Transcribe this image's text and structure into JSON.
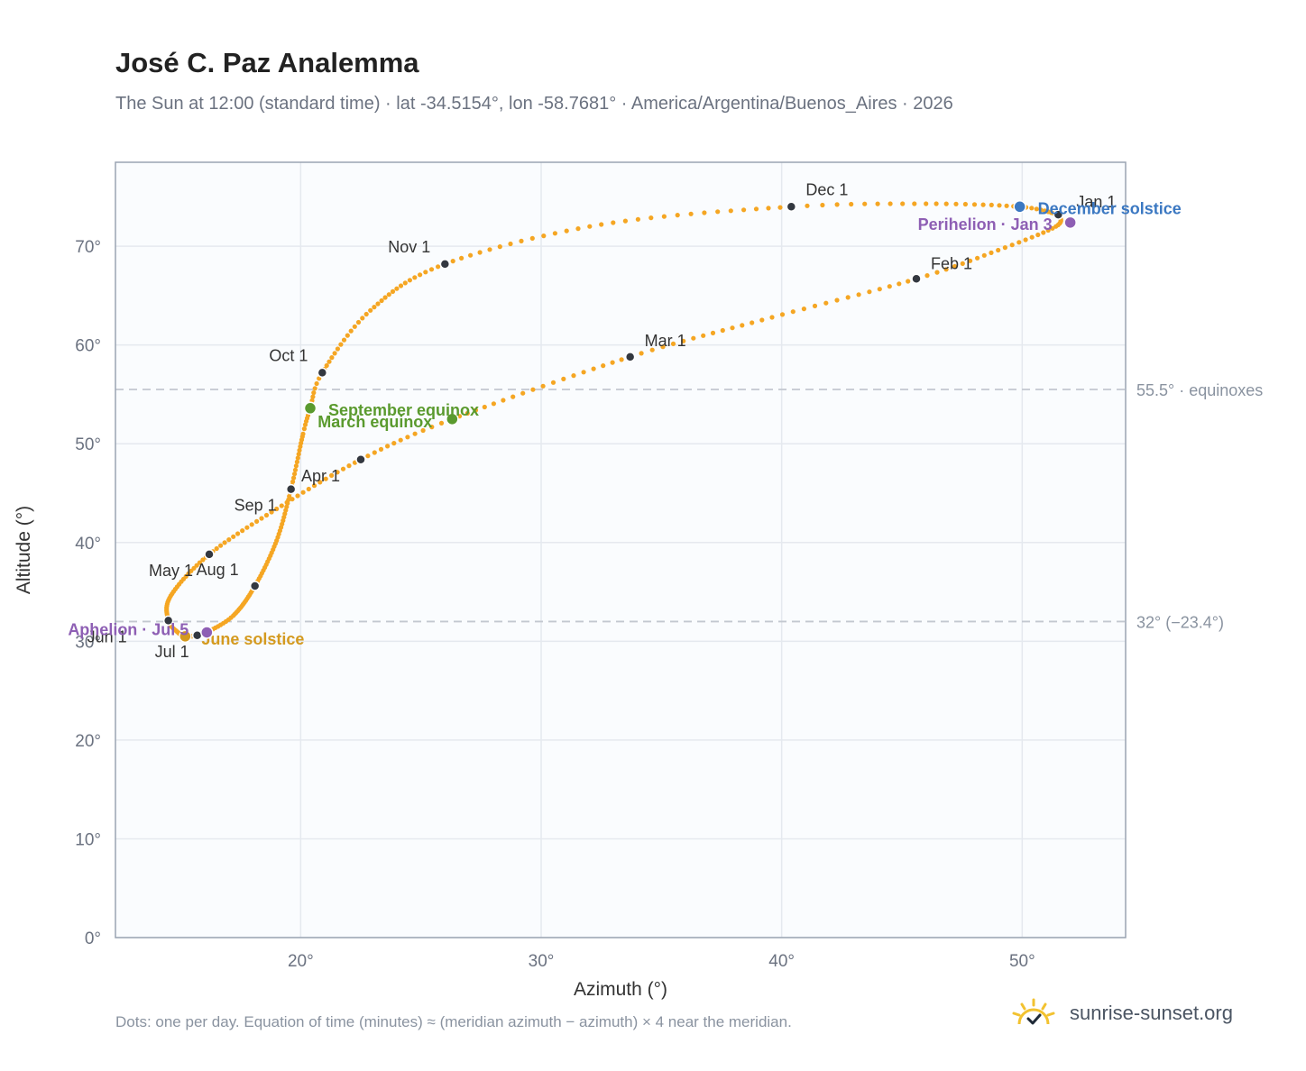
{
  "title": "José C. Paz Analemma",
  "subtitle": "The Sun at 12:00 (standard time) · lat -34.5154°, lon -58.7681° · America/Argentina/Buenos_Aires · 2026",
  "footnote": "Dots: one per day. Equation of time (minutes) ≈ (meridian azimuth − azimuth) × 4 near the meridian.",
  "brand": {
    "name": "sunrise-sunset.org",
    "icon": "sun-checkmark-icon"
  },
  "colors": {
    "path": "#f5a623",
    "month": "#333840",
    "equinox": "#5a9a2e",
    "june_solstice": "#d49a1f",
    "december_solstice": "#3b78c2",
    "apsis": "#8e5fb4",
    "reference_line": "#c3c8d0",
    "plot_bg": "#fafcfe",
    "grid": "#e5e9ef"
  },
  "chart_data": {
    "type": "scatter",
    "title": "José C. Paz Analemma",
    "xlabel": "Azimuth (°)",
    "ylabel": "Altitude (°)",
    "xlim": [
      12.3,
      54.3
    ],
    "ylim": [
      0,
      78.5
    ],
    "x_ticks": [
      20,
      30,
      40,
      50
    ],
    "y_ticks": [
      0,
      10,
      20,
      30,
      40,
      50,
      60,
      70
    ],
    "tick_suffix": "°",
    "grid": true,
    "reference_lines": [
      {
        "y": 55.5,
        "label": "55.5° · equinoxes"
      },
      {
        "y": 32,
        "label": "32° (−23.4°)"
      }
    ],
    "month_markers": [
      {
        "label": "Jan 1",
        "azimuth": 51.5,
        "altitude": 73.2
      },
      {
        "label": "Feb 1",
        "azimuth": 45.6,
        "altitude": 66.7
      },
      {
        "label": "Mar 1",
        "azimuth": 33.7,
        "altitude": 58.8
      },
      {
        "label": "Apr 1",
        "azimuth": 22.5,
        "altitude": 48.4
      },
      {
        "label": "May 1",
        "azimuth": 16.2,
        "altitude": 38.8
      },
      {
        "label": "Jun 1",
        "azimuth": 14.5,
        "altitude": 32.1
      },
      {
        "label": "Jul 1",
        "azimuth": 15.7,
        "altitude": 30.6
      },
      {
        "label": "Aug 1",
        "azimuth": 18.1,
        "altitude": 35.6
      },
      {
        "label": "Sep 1",
        "azimuth": 19.6,
        "altitude": 45.4
      },
      {
        "label": "Oct 1",
        "azimuth": 20.9,
        "altitude": 57.2
      },
      {
        "label": "Nov 1",
        "azimuth": 26.0,
        "altitude": 68.2
      },
      {
        "label": "Dec 1",
        "azimuth": 40.4,
        "altitude": 74.0
      }
    ],
    "events": [
      {
        "label": "March equinox",
        "azimuth": 26.3,
        "altitude": 52.5,
        "kind": "equinox"
      },
      {
        "label": "September equinox",
        "azimuth": 20.4,
        "altitude": 53.6,
        "kind": "equinox"
      },
      {
        "label": "June solstice",
        "azimuth": 15.2,
        "altitude": 30.5,
        "kind": "june_solstice"
      },
      {
        "label": "December solstice",
        "azimuth": 49.9,
        "altitude": 74.0,
        "kind": "december_solstice"
      },
      {
        "label": "Perihelion · Jan 3",
        "azimuth": 52.0,
        "altitude": 72.4,
        "kind": "apsis"
      },
      {
        "label": "Aphelion · Jul 5",
        "azimuth": 16.1,
        "altitude": 30.9,
        "kind": "apsis"
      }
    ],
    "path_anchors": [
      {
        "doy": 1,
        "azimuth": 51.5,
        "altitude": 73.2
      },
      {
        "doy": 12,
        "azimuth": 51.4,
        "altitude": 72.0
      },
      {
        "doy": 22,
        "azimuth": 49.0,
        "altitude": 69.6
      },
      {
        "doy": 32,
        "azimuth": 45.6,
        "altitude": 66.7
      },
      {
        "doy": 46,
        "azimuth": 39.6,
        "altitude": 62.8
      },
      {
        "doy": 60,
        "azimuth": 33.7,
        "altitude": 58.8
      },
      {
        "doy": 79,
        "azimuth": 26.3,
        "altitude": 52.5
      },
      {
        "doy": 91,
        "azimuth": 22.5,
        "altitude": 48.4
      },
      {
        "doy": 106,
        "azimuth": 19.0,
        "altitude": 43.4
      },
      {
        "doy": 121,
        "azimuth": 16.2,
        "altitude": 38.8
      },
      {
        "doy": 137,
        "azimuth": 14.6,
        "altitude": 34.6
      },
      {
        "doy": 152,
        "azimuth": 14.5,
        "altitude": 32.1
      },
      {
        "doy": 162,
        "azimuth": 14.9,
        "altitude": 30.9
      },
      {
        "doy": 172,
        "azimuth": 15.2,
        "altitude": 30.5
      },
      {
        "doy": 182,
        "azimuth": 15.7,
        "altitude": 30.6
      },
      {
        "doy": 186,
        "azimuth": 16.1,
        "altitude": 30.9
      },
      {
        "doy": 197,
        "azimuth": 17.2,
        "altitude": 32.6
      },
      {
        "doy": 213,
        "azimuth": 18.1,
        "altitude": 35.6
      },
      {
        "doy": 229,
        "azimuth": 19.0,
        "altitude": 40.2
      },
      {
        "doy": 244,
        "azimuth": 19.6,
        "altitude": 45.4
      },
      {
        "doy": 259,
        "azimuth": 20.1,
        "altitude": 51.0
      },
      {
        "doy": 266,
        "azimuth": 20.4,
        "altitude": 53.6
      },
      {
        "doy": 274,
        "azimuth": 20.9,
        "altitude": 57.2
      },
      {
        "doy": 289,
        "azimuth": 22.9,
        "altitude": 63.5
      },
      {
        "doy": 305,
        "azimuth": 26.0,
        "altitude": 68.2
      },
      {
        "doy": 320,
        "azimuth": 32.5,
        "altitude": 72.2
      },
      {
        "doy": 335,
        "azimuth": 40.4,
        "altitude": 74.0
      },
      {
        "doy": 345,
        "azimuth": 46.0,
        "altitude": 74.3
      },
      {
        "doy": 356,
        "azimuth": 49.9,
        "altitude": 74.0
      },
      {
        "doy": 366,
        "azimuth": 51.5,
        "altitude": 73.2
      }
    ]
  }
}
